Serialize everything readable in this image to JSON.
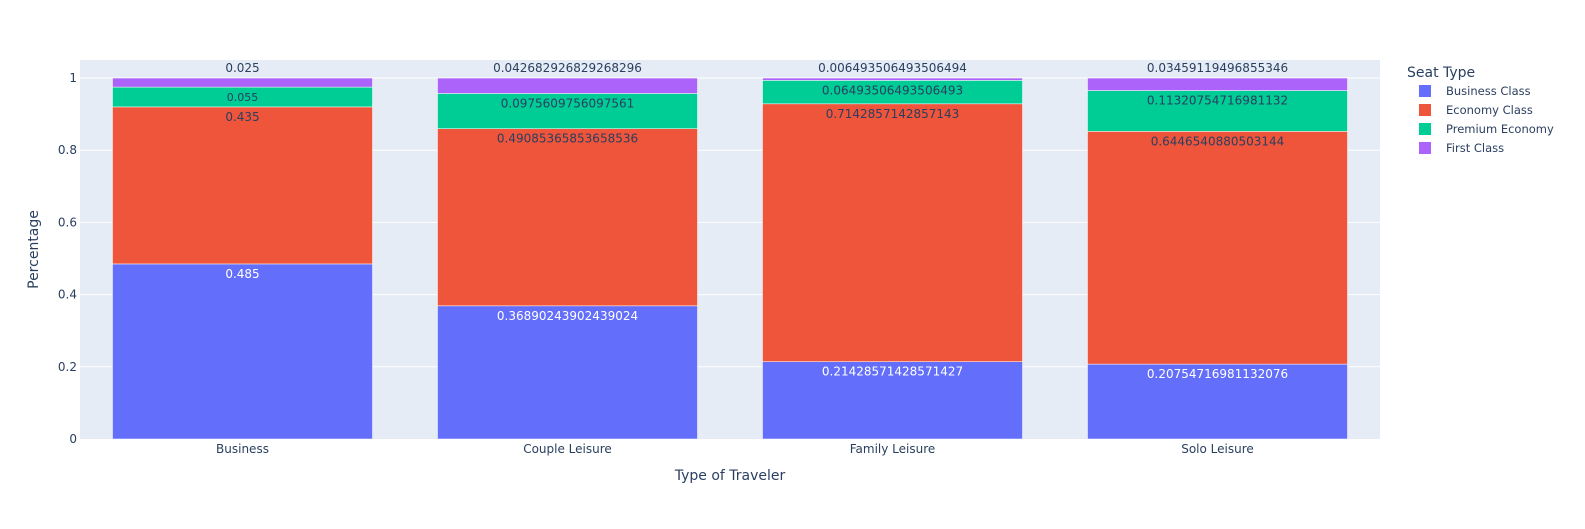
{
  "chart_data": {
    "type": "bar",
    "stacked": true,
    "categories": [
      "Business",
      "Couple Leisure",
      "Family Leisure",
      "Solo Leisure"
    ],
    "xlabel": "Type of Traveler",
    "ylabel": "Percentage",
    "ylim": [
      0,
      1.0
    ],
    "yticks": [
      0,
      0.2,
      0.4,
      0.6,
      0.8,
      1
    ],
    "ytick_labels": [
      "0",
      "0.2",
      "0.4",
      "0.6",
      "0.8",
      "1"
    ],
    "grid": true,
    "legend": {
      "title": "Seat Type",
      "position": "top-right"
    },
    "series": [
      {
        "name": "Business Class",
        "color": "#636efa",
        "values": [
          0.485,
          0.36890243902439024,
          0.21428571428571427,
          0.20754716981132076
        ],
        "labels": [
          "0.485",
          "0.3689024390243902​4",
          "0.21428571428571427",
          "0.20754716981132076"
        ]
      },
      {
        "name": "Economy Class",
        "color": "#ef553b",
        "values": [
          0.435,
          0.49085365853658536,
          0.7142857142857143,
          0.6446540880503144
        ],
        "labels": [
          "0.435",
          "0.49085365853658536",
          "0.7142857142857143",
          "0.6446540880503144"
        ]
      },
      {
        "name": "Premium Economy",
        "color": "#00cc96",
        "values": [
          0.055,
          0.0975609756097561,
          0.06493506493506493,
          0.11320754716981132
        ],
        "labels": [
          "0.055",
          "0.0975609756097561",
          "0.06493506493506493",
          "0.11320754716981132"
        ]
      },
      {
        "name": "First Class",
        "color": "#ab63fa",
        "values": [
          0.025,
          0.042682926829268296,
          0.006493506493506494,
          0.03459119496855346
        ],
        "labels": [
          "0.025",
          "0.042682926829268296",
          "0.006493506493506494",
          "0.03459119496855346"
        ]
      }
    ]
  },
  "colors": {
    "plot_bg": "#e5ecf6",
    "grid": "#ffffff",
    "axis_text": "#2a3f5f"
  }
}
